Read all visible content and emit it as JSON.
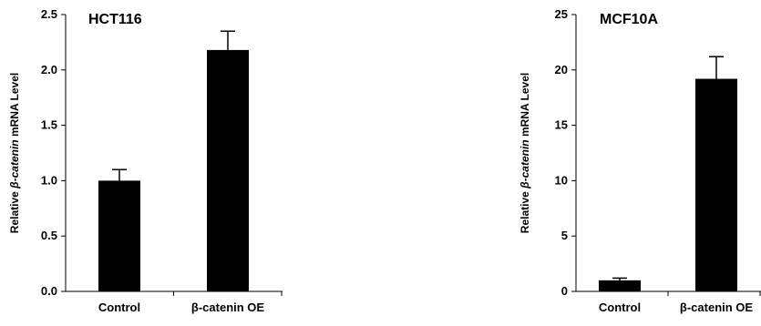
{
  "chart_data": [
    {
      "type": "bar",
      "title": "HCT116",
      "ylabel_prefix": "Relative ",
      "ylabel_italic": "β-catenin",
      "ylabel_suffix": " mRNA Level",
      "categories": [
        "Control",
        "β-catenin OE"
      ],
      "values": [
        1.0,
        2.18
      ],
      "errors": [
        0.1,
        0.17
      ],
      "ylim": [
        0,
        2.5
      ],
      "yticks": [
        "0.0",
        "0.5",
        "1.0",
        "1.5",
        "2.0",
        "2.5"
      ],
      "ytick_values": [
        0,
        0.5,
        1.0,
        1.5,
        2.0,
        2.5
      ],
      "bar_color": "#000000",
      "grid": false
    },
    {
      "type": "bar",
      "title": "MCF10A",
      "ylabel_prefix": "Relative ",
      "ylabel_italic": "β-catenin",
      "ylabel_suffix": " mRNA Level",
      "categories": [
        "Control",
        "β-catenin OE"
      ],
      "values": [
        1.0,
        19.2
      ],
      "errors": [
        0.2,
        2.0
      ],
      "ylim": [
        0,
        25
      ],
      "yticks": [
        "0",
        "5",
        "10",
        "15",
        "20",
        "25"
      ],
      "ytick_values": [
        0,
        5,
        10,
        15,
        20,
        25
      ],
      "bar_color": "#000000",
      "grid": false
    }
  ]
}
